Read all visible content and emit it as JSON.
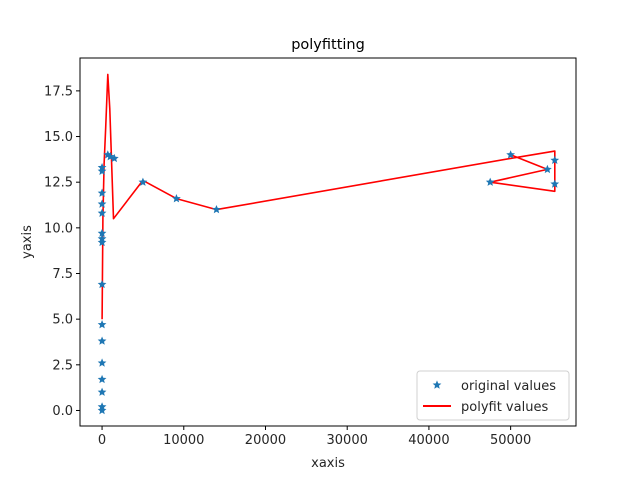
{
  "chart_data": {
    "type": "line",
    "title": "polyfitting",
    "xlabel": "xaxis",
    "ylabel": "yaxis",
    "xlim": [
      -2700,
      58000
    ],
    "ylim": [
      -0.85,
      19.3
    ],
    "xticks": [
      0,
      10000,
      20000,
      30000,
      40000,
      50000
    ],
    "xtick_labels": [
      "0",
      "10000",
      "20000",
      "30000",
      "40000",
      "50000"
    ],
    "yticks": [
      0.0,
      2.5,
      5.0,
      7.5,
      10.0,
      12.5,
      15.0,
      17.5
    ],
    "ytick_labels": [
      "0.0",
      "2.5",
      "5.0",
      "7.5",
      "10.0",
      "12.5",
      "15.0",
      "17.5"
    ],
    "grid": false,
    "legend_position": "lower right",
    "series": [
      {
        "name": "original values",
        "style": "marker-star",
        "color": "#1f77b4",
        "x": [
          0,
          0,
          0,
          0,
          0,
          0,
          0,
          0,
          0,
          0,
          0,
          0,
          0,
          0,
          0,
          0,
          700,
          1000,
          1500,
          5000,
          9100,
          14000,
          47500,
          50000,
          54500,
          55400,
          55400
        ],
        "y": [
          0.0,
          0.2,
          1.0,
          1.7,
          2.6,
          3.8,
          4.7,
          6.9,
          9.2,
          9.4,
          9.7,
          10.8,
          11.3,
          11.9,
          13.1,
          13.3,
          14.0,
          13.9,
          13.8,
          12.5,
          11.6,
          11.0,
          12.5,
          14.0,
          13.2,
          13.7,
          12.4
        ]
      },
      {
        "name": "polyfit values",
        "style": "line",
        "color": "#ff0000",
        "x": [
          0,
          100,
          250,
          450,
          700,
          950,
          1400,
          5000,
          9100,
          14000,
          50000,
          55400,
          55400,
          47500,
          54500,
          50000
        ],
        "y": [
          5.0,
          10.5,
          13.5,
          15.5,
          18.4,
          16.5,
          10.5,
          12.6,
          11.6,
          11.0,
          13.8,
          14.2,
          12.0,
          12.5,
          13.2,
          14.0
        ]
      }
    ]
  },
  "legend": {
    "items": [
      {
        "label": "original values",
        "color": "#1f77b4"
      },
      {
        "label": "polyfit values",
        "color": "#ff0000"
      }
    ]
  }
}
